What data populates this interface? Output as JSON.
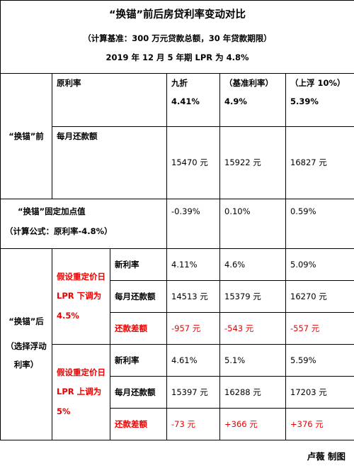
{
  "header": {
    "title": "“换锚”前后房贷利率变动对比",
    "subtitle": "（计算基准：300 万元贷款总额，30 年贷款期限）",
    "note": "2019 年 12 月 5 年期 LPR 为 4.8%"
  },
  "before": {
    "label": "“换锚”前",
    "rate_label": "原利率",
    "columns": [
      "九折",
      "（基准利率）",
      "（上浮 10%）"
    ],
    "rates": [
      "4.41%",
      "4.9%",
      "5.39%"
    ],
    "payment_label": "每月还款额",
    "payments": [
      "15470 元",
      "15922 元",
      "16827 元"
    ]
  },
  "spread": {
    "label": "“换锚”固定加点值",
    "formula": "（计算公式：原利率-4.8%）",
    "values": [
      "-0.39%",
      "0.10%",
      "0.59%"
    ]
  },
  "after": {
    "label": "“换锚”后",
    "note": "（选择浮动利率）",
    "scenarios": [
      {
        "assumption": "假设重定价日 LPR 下调为 4.5%",
        "rows": [
          {
            "label": "新利率",
            "values": [
              "4.11%",
              "4.6%",
              "5.09%"
            ]
          },
          {
            "label": "每月还款额",
            "values": [
              "14513 元",
              "15379 元",
              "16270 元"
            ]
          },
          {
            "label": "还款差额",
            "values": [
              "-957 元",
              "-543 元",
              "-557 元"
            ]
          }
        ]
      },
      {
        "assumption": "假设重定价日 LPR 上调为 5%",
        "rows": [
          {
            "label": "新利率",
            "values": [
              "4.61%",
              "5.1%",
              "5.59%"
            ]
          },
          {
            "label": "每月还款额",
            "values": [
              "15397 元",
              "16288 元",
              "17203 元"
            ]
          },
          {
            "label": "还款差额",
            "values": [
              "-73 元",
              "+366 元",
              "+376 元"
            ]
          }
        ]
      }
    ]
  },
  "footer": "卢薇 制图"
}
